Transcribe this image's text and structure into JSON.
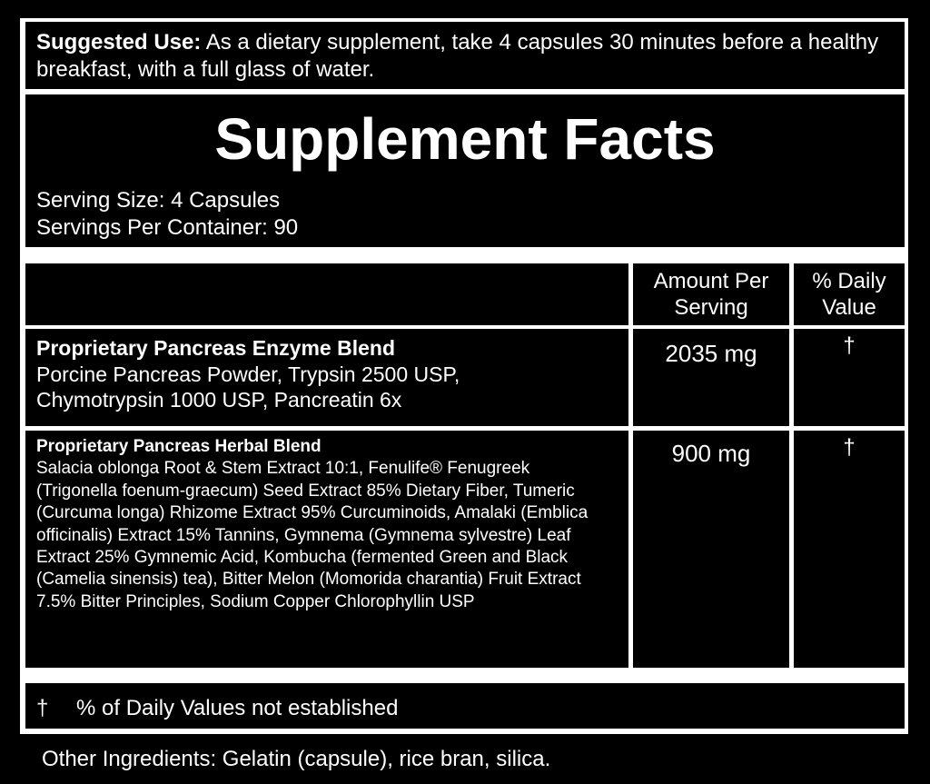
{
  "suggested_use": {
    "label": "Suggested Use:",
    "text": " As a dietary supplement, take 4 capsules 30 minutes before a healthy breakfast, with a full glass of water."
  },
  "title": "Supplement Facts",
  "serving_size": "Serving Size: 4 Capsules",
  "servings_per_container": "Servings Per Container: 90",
  "table": {
    "headers": {
      "amount": "Amount Per Serving",
      "daily_value": "% Daily Value"
    },
    "rows": [
      {
        "name": "Proprietary Pancreas Enzyme Blend",
        "ingredients": "Porcine Pancreas Powder, Trypsin 2500 USP, Chymotrypsin 1000 USP, Pancreatin 6x",
        "amount": "2035 mg",
        "daily_value": "†"
      },
      {
        "name": "Proprietary Pancreas Herbal Blend",
        "ingredients": "Salacia oblonga Root & Stem Extract 10:1, Fenulife® Fenugreek (Trigonella foenum-graecum) Seed Extract 85% Dietary Fiber, Tumeric (Curcuma longa) Rhizome Extract 95% Curcuminoids, Amalaki (Emblica officinalis) Extract 15% Tannins, Gymnema (Gymnema sylvestre) Leaf Extract 25% Gymnemic Acid, Kombucha (fermented Green and Black (Camelia sinensis) tea), Bitter Melon (Momorida charantia) Fruit Extract 7.5% Bitter Principles, Sodium Copper Chlorophyllin USP",
        "amount": "900 mg",
        "daily_value": "†"
      }
    ]
  },
  "footnote": {
    "symbol": "†",
    "text": "% of Daily Values not established"
  },
  "other_ingredients": "Other Ingredients: Gelatin (capsule), rice bran, silica."
}
